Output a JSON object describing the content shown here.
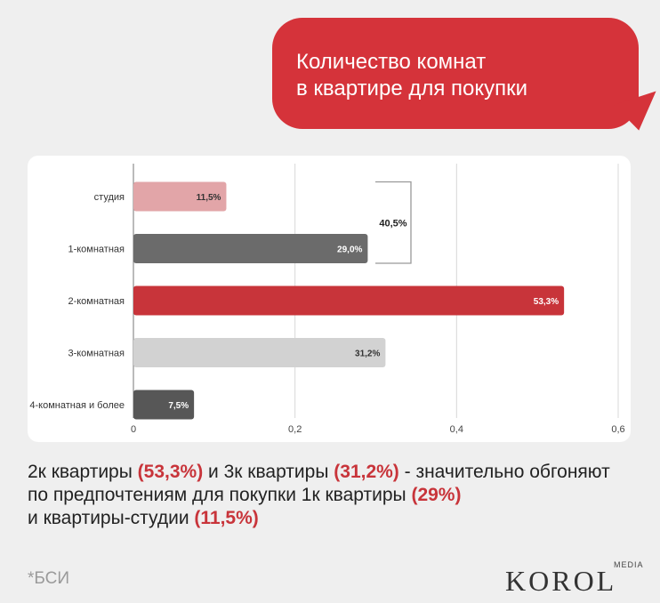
{
  "header": {
    "title": "Количество комнат\nв квартире для покупки"
  },
  "chart_data": {
    "type": "bar",
    "orientation": "horizontal",
    "categories": [
      "студия",
      "1-комнатная",
      "2-комнатная",
      "3-комнатная",
      "4-комнатная и более"
    ],
    "values": [
      0.115,
      0.29,
      0.533,
      0.312,
      0.075
    ],
    "value_labels": [
      "11,5%",
      "29,0%",
      "53,3%",
      "31,2%",
      "7,5%"
    ],
    "colors": [
      "#e2a5a8",
      "#6b6b6b",
      "#c8343a",
      "#d2d2d2",
      "#575757"
    ],
    "label_colors": [
      "#333333",
      "#ffffff",
      "#ffffff",
      "#333333",
      "#ffffff"
    ],
    "xlim": [
      0,
      0.6
    ],
    "xticks": [
      0,
      0.2,
      0.4,
      0.6
    ],
    "xtick_labels": [
      "0",
      "0,2",
      "0,4",
      "0,6"
    ],
    "grid": true,
    "bracket": {
      "from": "студия",
      "to": "1-комнатная",
      "label": "40,5%"
    }
  },
  "caption": {
    "line1": [
      "2к квартиры ",
      "(53,3%)",
      " и 3к квартиры ",
      "(31,2%)",
      " - значительно обгоняют"
    ],
    "line2": [
      "по предпочтениям для покупки 1к квартиры ",
      "(29%)"
    ],
    "line3": [
      "и квартиры-студии ",
      "(11,5%)"
    ]
  },
  "footer": {
    "source": "*БСИ",
    "logo": "KOROL",
    "logo_sub": "MEDIA"
  },
  "colors": {
    "accent": "#d5333a",
    "background": "#efefef"
  }
}
